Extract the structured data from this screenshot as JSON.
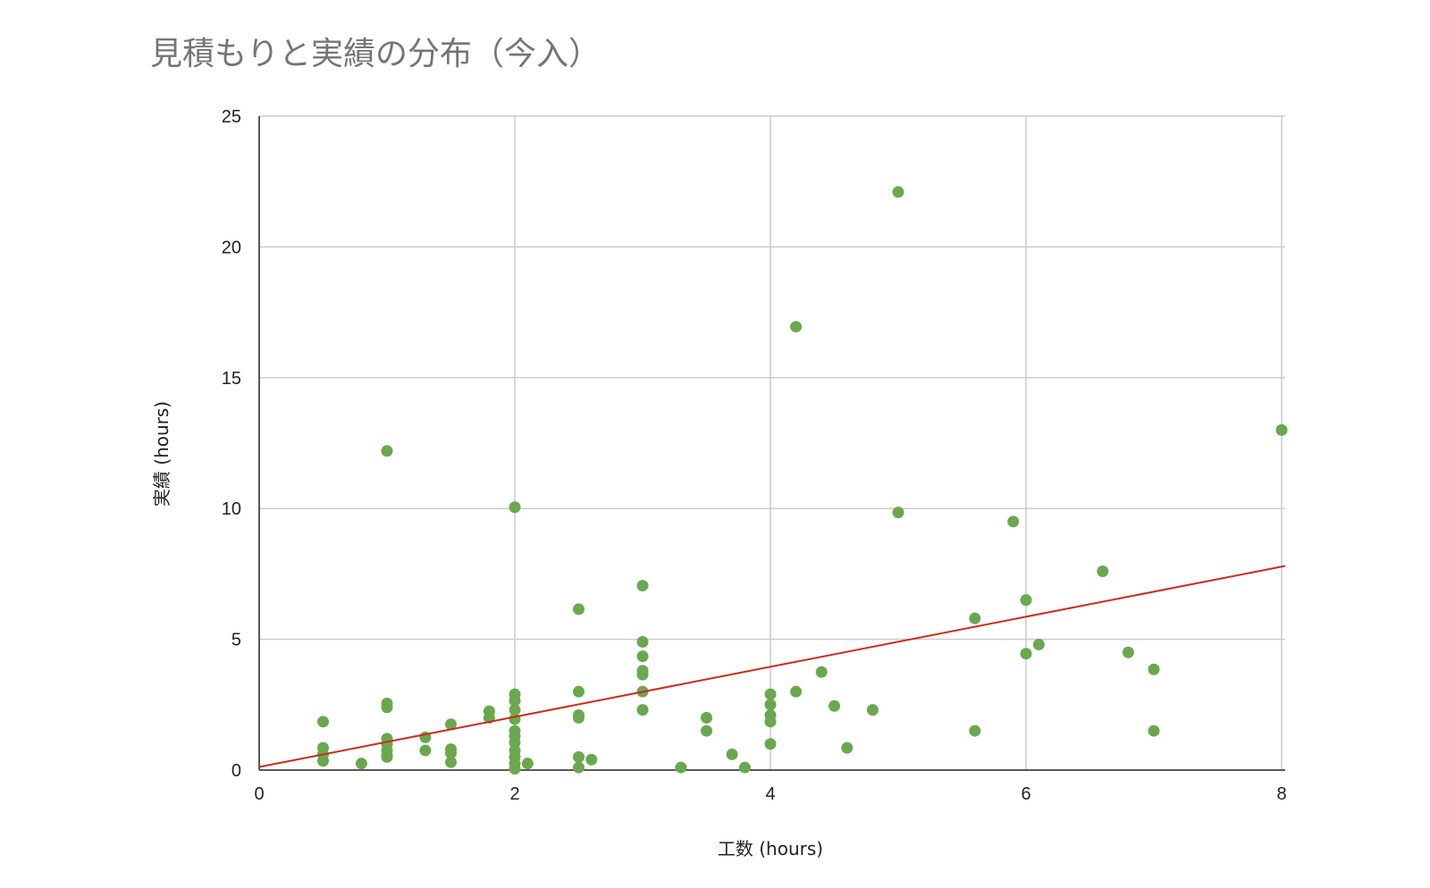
{
  "chart_data": {
    "type": "scatter",
    "title": "見積もりと実績の分布（今入）",
    "xlabel": "工数 (hours)",
    "ylabel": "実績 (hours)",
    "xlim": [
      0,
      8
    ],
    "ylim": [
      0,
      25
    ],
    "x_ticks": [
      "0",
      "2",
      "4",
      "6",
      "8"
    ],
    "y_ticks": [
      "0",
      "5",
      "10",
      "15",
      "20",
      "25"
    ],
    "grid": true,
    "legend": "none",
    "colors": {
      "points": "#6aa84f",
      "trendline": "#cc2b1d",
      "grid": "#cccccc",
      "axis": "#222222"
    },
    "trendline": {
      "type": "linear",
      "start": [
        0,
        0.12
      ],
      "end": [
        8,
        7.8
      ]
    },
    "points": [
      {
        "x": 0.5,
        "y": 1.85
      },
      {
        "x": 0.5,
        "y": 0.85
      },
      {
        "x": 0.5,
        "y": 0.6
      },
      {
        "x": 0.5,
        "y": 0.35
      },
      {
        "x": 0.8,
        "y": 0.25
      },
      {
        "x": 1.0,
        "y": 12.2
      },
      {
        "x": 1.0,
        "y": 2.55
      },
      {
        "x": 1.0,
        "y": 2.4
      },
      {
        "x": 1.0,
        "y": 1.2
      },
      {
        "x": 1.0,
        "y": 1.0
      },
      {
        "x": 1.0,
        "y": 0.75
      },
      {
        "x": 1.0,
        "y": 0.55
      },
      {
        "x": 1.0,
        "y": 0.5
      },
      {
        "x": 1.3,
        "y": 1.25
      },
      {
        "x": 1.3,
        "y": 0.75
      },
      {
        "x": 1.5,
        "y": 1.75
      },
      {
        "x": 1.5,
        "y": 0.8
      },
      {
        "x": 1.5,
        "y": 0.65
      },
      {
        "x": 1.5,
        "y": 0.3
      },
      {
        "x": 1.8,
        "y": 2.25
      },
      {
        "x": 1.8,
        "y": 2.0
      },
      {
        "x": 2.0,
        "y": 10.05
      },
      {
        "x": 2.0,
        "y": 2.9
      },
      {
        "x": 2.0,
        "y": 2.65
      },
      {
        "x": 2.0,
        "y": 2.3
      },
      {
        "x": 2.0,
        "y": 1.95
      },
      {
        "x": 2.0,
        "y": 1.5
      },
      {
        "x": 2.0,
        "y": 1.3
      },
      {
        "x": 2.0,
        "y": 1.05
      },
      {
        "x": 2.0,
        "y": 0.75
      },
      {
        "x": 2.0,
        "y": 0.5
      },
      {
        "x": 2.0,
        "y": 0.25
      },
      {
        "x": 2.0,
        "y": 0.05
      },
      {
        "x": 2.1,
        "y": 0.25
      },
      {
        "x": 2.5,
        "y": 6.15
      },
      {
        "x": 2.5,
        "y": 3.0
      },
      {
        "x": 2.5,
        "y": 2.1
      },
      {
        "x": 2.5,
        "y": 2.0
      },
      {
        "x": 2.5,
        "y": 0.5
      },
      {
        "x": 2.5,
        "y": 0.1
      },
      {
        "x": 2.6,
        "y": 0.4
      },
      {
        "x": 3.0,
        "y": 7.05
      },
      {
        "x": 3.0,
        "y": 4.9
      },
      {
        "x": 3.0,
        "y": 4.35
      },
      {
        "x": 3.0,
        "y": 3.8
      },
      {
        "x": 3.0,
        "y": 3.65
      },
      {
        "x": 3.0,
        "y": 3.0
      },
      {
        "x": 3.0,
        "y": 2.3
      },
      {
        "x": 3.3,
        "y": 0.1
      },
      {
        "x": 3.5,
        "y": 2.0
      },
      {
        "x": 3.5,
        "y": 1.5
      },
      {
        "x": 3.7,
        "y": 0.6
      },
      {
        "x": 3.8,
        "y": 0.1
      },
      {
        "x": 4.0,
        "y": 2.9
      },
      {
        "x": 4.0,
        "y": 2.5
      },
      {
        "x": 4.0,
        "y": 2.1
      },
      {
        "x": 4.0,
        "y": 1.85
      },
      {
        "x": 4.0,
        "y": 1.0
      },
      {
        "x": 4.2,
        "y": 16.95
      },
      {
        "x": 4.2,
        "y": 3.0
      },
      {
        "x": 4.4,
        "y": 3.75
      },
      {
        "x": 4.5,
        "y": 2.45
      },
      {
        "x": 4.6,
        "y": 0.85
      },
      {
        "x": 4.8,
        "y": 2.3
      },
      {
        "x": 5.0,
        "y": 22.1
      },
      {
        "x": 5.0,
        "y": 9.85
      },
      {
        "x": 5.6,
        "y": 5.8
      },
      {
        "x": 5.6,
        "y": 1.5
      },
      {
        "x": 5.9,
        "y": 9.5
      },
      {
        "x": 6.0,
        "y": 6.5
      },
      {
        "x": 6.0,
        "y": 4.45
      },
      {
        "x": 6.1,
        "y": 4.8
      },
      {
        "x": 6.6,
        "y": 7.6
      },
      {
        "x": 6.8,
        "y": 4.5
      },
      {
        "x": 7.0,
        "y": 3.85
      },
      {
        "x": 7.0,
        "y": 1.5
      },
      {
        "x": 8.0,
        "y": 13.0
      }
    ]
  }
}
